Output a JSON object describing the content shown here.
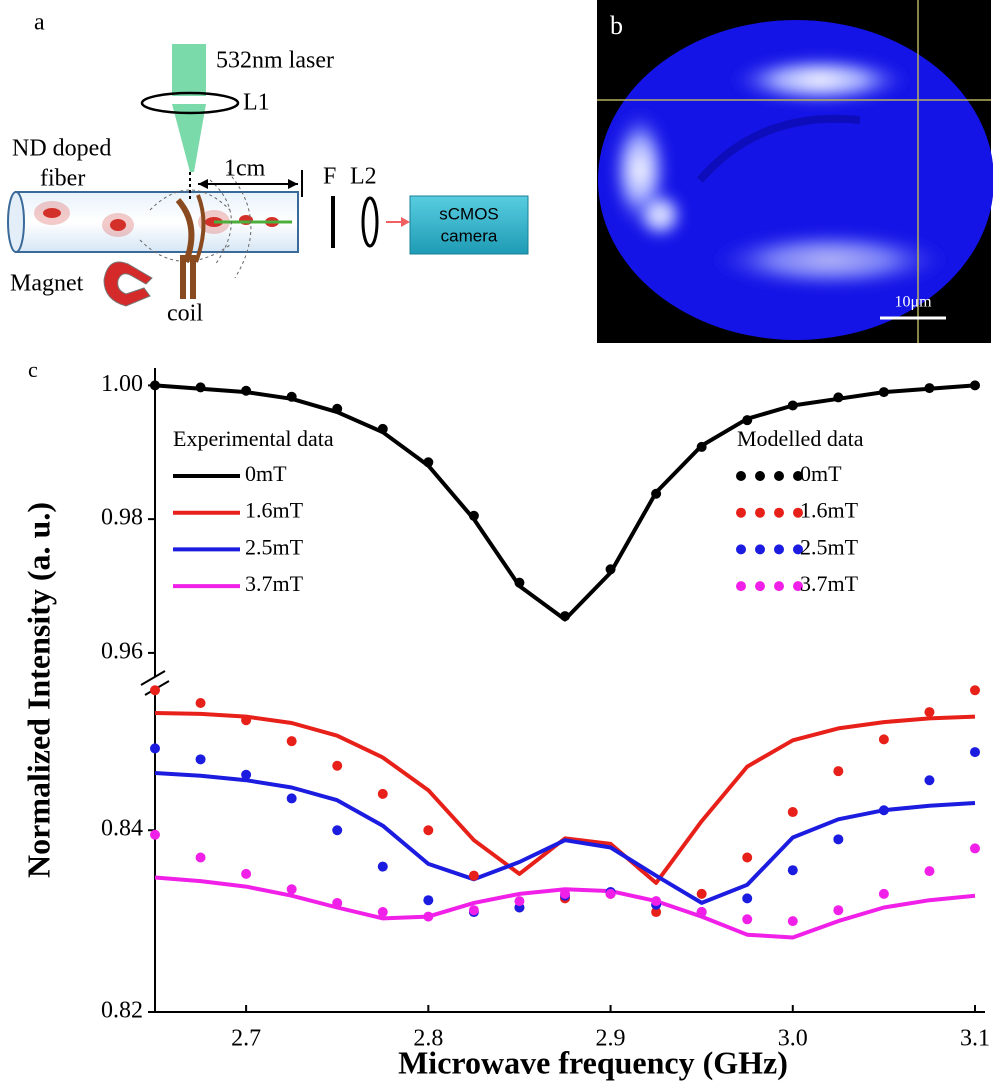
{
  "panels": {
    "a": {
      "label": "a",
      "laser": "532nm laser",
      "lens1": "L1",
      "fiber_lines": [
        "ND doped",
        "fiber"
      ],
      "scale": "1cm",
      "filter": "F",
      "lens2": "L2",
      "camera_lines": [
        "sCMOS",
        "camera"
      ],
      "magnet": "Magnet",
      "coil": "coil"
    },
    "b": {
      "label": "b",
      "scale_bar": "10μm"
    },
    "c": {
      "label": "c"
    }
  },
  "chart_data": {
    "type": "line",
    "xlabel": "Microwave frequency (GHz)",
    "ylabel": "Normalized Intensity (a. u.)",
    "x": [
      2.65,
      2.675,
      2.7,
      2.725,
      2.75,
      2.775,
      2.8,
      2.825,
      2.85,
      2.875,
      2.9,
      2.925,
      2.95,
      2.975,
      3.0,
      3.025,
      3.05,
      3.075,
      3.1
    ],
    "xlim": [
      2.65,
      3.1
    ],
    "xticks": [
      2.7,
      2.8,
      2.9,
      {
        "value": 3.0,
        "label": "3.0"
      },
      3.1
    ],
    "ylim": [
      0.82,
      0.8562
    ],
    "yticks": [
      0.82,
      0.84
    ],
    "ylim_upper": [
      0.9555,
      1.0026
    ],
    "yticks_upper": [
      0.96,
      0.98,
      {
        "value": 1.0,
        "label": "1.00"
      }
    ],
    "axis_break": true,
    "legend_titles": {
      "line": "Experimental data",
      "dots": "Modelled data"
    },
    "series": [
      {
        "name": "0mT",
        "color": "#000000",
        "style": "line",
        "values": [
          1.0,
          0.9995,
          0.999,
          0.998,
          0.996,
          0.993,
          0.988,
          0.98,
          0.97,
          0.965,
          0.972,
          0.984,
          0.991,
          0.995,
          0.997,
          0.998,
          0.999,
          0.9995,
          1.0
        ]
      },
      {
        "name": "1.6mT",
        "color": "#e8201a",
        "style": "line",
        "values": [
          0.8529,
          0.8528,
          0.8525,
          0.8518,
          0.8504,
          0.848,
          0.8444,
          0.8389,
          0.8352,
          0.8391,
          0.8385,
          0.8342,
          0.841,
          0.847,
          0.8499,
          0.8512,
          0.8519,
          0.8523,
          0.8525
        ]
      },
      {
        "name": "2.5mT",
        "color": "#1c1ce0",
        "style": "line",
        "values": [
          0.8463,
          0.846,
          0.8455,
          0.8447,
          0.8433,
          0.8405,
          0.8363,
          0.8346,
          0.8365,
          0.8389,
          0.8381,
          0.835,
          0.832,
          0.834,
          0.8392,
          0.8412,
          0.8422,
          0.8427,
          0.843
        ]
      },
      {
        "name": "3.7mT",
        "color": "#f020e8",
        "style": "line",
        "values": [
          0.8348,
          0.8344,
          0.8338,
          0.8328,
          0.8315,
          0.8303,
          0.8305,
          0.832,
          0.833,
          0.8335,
          0.8333,
          0.8322,
          0.8305,
          0.8285,
          0.8282,
          0.83,
          0.8315,
          0.8323,
          0.8328
        ]
      },
      {
        "name": "0mT",
        "color": "#000000",
        "style": "dots",
        "values": [
          1.0,
          0.9997,
          0.9992,
          0.9983,
          0.9965,
          0.9935,
          0.9885,
          0.9805,
          0.9705,
          0.9655,
          0.9725,
          0.9838,
          0.9908,
          0.9948,
          0.997,
          0.9982,
          0.999,
          0.9996,
          1.0
        ]
      },
      {
        "name": "1.6mT",
        "color": "#e8201a",
        "style": "dots",
        "values": [
          0.8554,
          0.854,
          0.8521,
          0.8498,
          0.8471,
          0.844,
          0.84,
          0.835,
          0.8315,
          0.8325,
          0.833,
          0.831,
          0.833,
          0.837,
          0.842,
          0.8465,
          0.85,
          0.853,
          0.8554
        ]
      },
      {
        "name": "2.5mT",
        "color": "#1c1ce0",
        "style": "dots",
        "values": [
          0.849,
          0.8478,
          0.8461,
          0.8435,
          0.84,
          0.836,
          0.8323,
          0.831,
          0.8315,
          0.8328,
          0.8332,
          0.8318,
          0.831,
          0.8325,
          0.8356,
          0.839,
          0.8422,
          0.8455,
          0.8486
        ]
      },
      {
        "name": "3.7mT",
        "color": "#f020e8",
        "style": "dots",
        "values": [
          0.8395,
          0.837,
          0.8352,
          0.8335,
          0.832,
          0.831,
          0.8305,
          0.8312,
          0.8322,
          0.833,
          0.833,
          0.8322,
          0.831,
          0.8302,
          0.83,
          0.8312,
          0.833,
          0.8355,
          0.838
        ]
      }
    ]
  }
}
